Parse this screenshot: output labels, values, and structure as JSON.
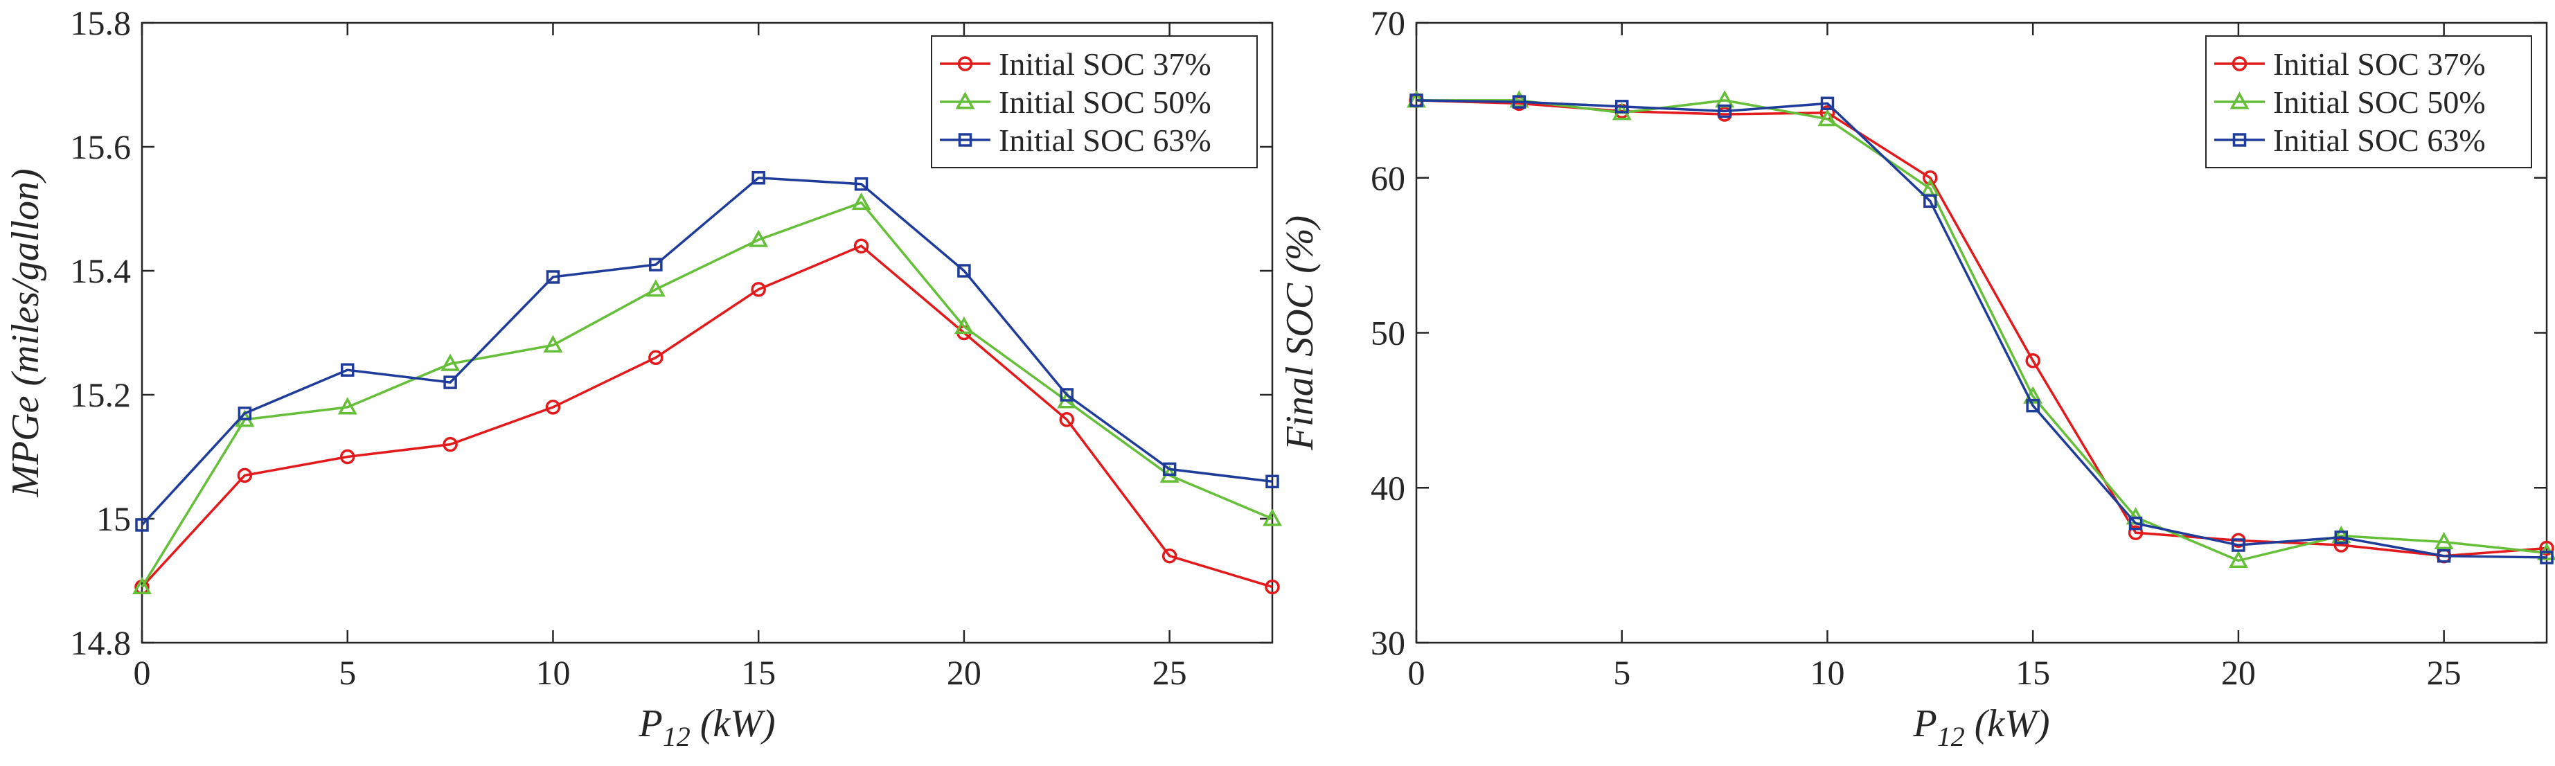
{
  "colors": {
    "series_1": "#e31a1c",
    "series_2": "#66bf39",
    "series_3": "#1f3c9a",
    "axis": "#262626",
    "background": "#ffffff"
  },
  "chart_data": [
    {
      "type": "line",
      "title": "",
      "xlabel_main": "P",
      "xlabel_sub": "12",
      "xlabel_unit": " (kW)",
      "ylabel": "MPGe (miles/gallon)",
      "xlim": [
        0,
        27.5
      ],
      "ylim": [
        14.8,
        15.8
      ],
      "xticks": [
        0,
        5,
        10,
        15,
        20,
        25
      ],
      "xtick_labels": [
        "0",
        "5",
        "10",
        "15",
        "20",
        "25"
      ],
      "yticks": [
        14.8,
        15.0,
        15.2,
        15.4,
        15.6,
        15.8
      ],
      "ytick_labels": [
        "14.8",
        "15",
        "15.2",
        "15.4",
        "15.6",
        "15.8"
      ],
      "grid": false,
      "legend_position": "top-right",
      "x": [
        0,
        2.5,
        5,
        7.5,
        10,
        12.5,
        15,
        17.5,
        20,
        22.5,
        25,
        27.5
      ],
      "series": [
        {
          "name": "Initial SOC 37%",
          "marker": "circle",
          "values": [
            14.89,
            15.07,
            15.1,
            15.12,
            15.18,
            15.26,
            15.37,
            15.44,
            15.3,
            15.16,
            14.94,
            14.89
          ]
        },
        {
          "name": "Initial SOC 50%",
          "marker": "triangle",
          "values": [
            14.89,
            15.16,
            15.18,
            15.25,
            15.28,
            15.37,
            15.45,
            15.51,
            15.31,
            15.19,
            15.07,
            15.0
          ]
        },
        {
          "name": "Initial SOC 63%",
          "marker": "square",
          "values": [
            14.99,
            15.17,
            15.24,
            15.22,
            15.39,
            15.41,
            15.55,
            15.54,
            15.4,
            15.2,
            15.08,
            15.06
          ]
        }
      ]
    },
    {
      "type": "line",
      "title": "",
      "xlabel_main": "P",
      "xlabel_sub": "12",
      "xlabel_unit": " (kW)",
      "ylabel": "Final SOC (%)",
      "xlim": [
        0,
        27.5
      ],
      "ylim": [
        30,
        70
      ],
      "xticks": [
        0,
        5,
        10,
        15,
        20,
        25
      ],
      "xtick_labels": [
        "0",
        "5",
        "10",
        "15",
        "20",
        "25"
      ],
      "yticks": [
        30,
        40,
        50,
        60,
        70
      ],
      "ytick_labels": [
        "30",
        "40",
        "50",
        "60",
        "70"
      ],
      "grid": false,
      "legend_position": "top-right",
      "x": [
        0,
        2.5,
        5,
        7.5,
        10,
        12.5,
        15,
        17.5,
        20,
        22.5,
        25,
        27.5
      ],
      "series": [
        {
          "name": "Initial SOC 37%",
          "marker": "circle",
          "values": [
            65.0,
            64.8,
            64.3,
            64.1,
            64.2,
            60.0,
            48.2,
            37.1,
            36.6,
            36.3,
            35.6,
            36.1
          ]
        },
        {
          "name": "Initial SOC 50%",
          "marker": "triangle",
          "values": [
            65.0,
            65.0,
            64.2,
            65.0,
            63.8,
            59.3,
            45.9,
            38.1,
            35.3,
            36.9,
            36.5,
            35.8
          ]
        },
        {
          "name": "Initial SOC 63%",
          "marker": "square",
          "values": [
            65.0,
            64.9,
            64.6,
            64.3,
            64.8,
            58.5,
            45.3,
            37.7,
            36.3,
            36.8,
            35.6,
            35.5
          ]
        }
      ]
    }
  ]
}
